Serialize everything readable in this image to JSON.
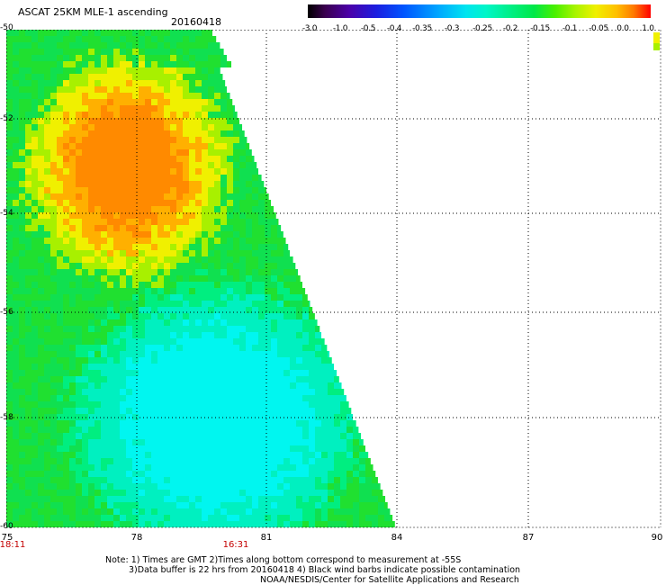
{
  "title": "ASCAT 25KM MLE-1 ascending",
  "date": "20160418",
  "colorbar": {
    "ticks": [
      "-3.0",
      "-1.0",
      "-0.5",
      "-0.4",
      "-0.35",
      "-0.3",
      "-0.25",
      "-0.2",
      "-0.15",
      "-0.1",
      "-0.05",
      "0.0",
      "1.0"
    ]
  },
  "axes": {
    "lon_labels": [
      "75",
      "78",
      "81",
      "84",
      "87",
      "90"
    ],
    "lat_labels": [
      "-50",
      "-52",
      "-54",
      "-56",
      "-58",
      "-60"
    ],
    "time_labels": [
      "18:11",
      "16:31"
    ]
  },
  "notes": {
    "line1": "Note: 1) Times are GMT 2)Times along bottom correspond to measurement at -55S",
    "line2": "3)Data buffer is 22 hrs from 20160418 4) Black wind barbs indicate possible contamination",
    "line3": "NOAA/NESDIS/Center for Satellite Applications and Research"
  },
  "colors": {
    "low": "#00f4f0",
    "mid": "#10e040",
    "high": "#ff8c00",
    "time_label": "#c40000"
  }
}
